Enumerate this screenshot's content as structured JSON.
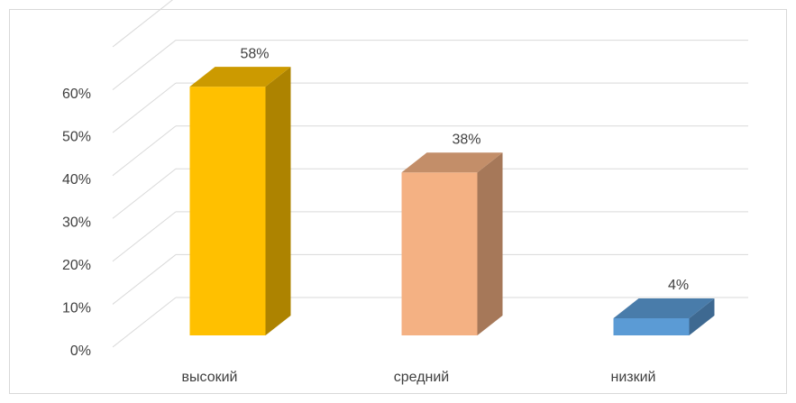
{
  "chart_data": {
    "type": "bar3d",
    "categories": [
      "высокий",
      "средний",
      "низкий"
    ],
    "values": [
      58,
      38,
      4
    ],
    "value_labels": [
      "58%",
      "38%",
      "4%"
    ],
    "colors": [
      "#FFC000",
      "#F4B183",
      "#5B9BD5"
    ],
    "ylim": [
      0,
      70
    ],
    "yticks": [
      {
        "value": 0,
        "label": "0%"
      },
      {
        "value": 10,
        "label": "10%"
      },
      {
        "value": 20,
        "label": "20%"
      },
      {
        "value": 30,
        "label": "30%"
      },
      {
        "value": 40,
        "label": "40%"
      },
      {
        "value": 50,
        "label": "50%"
      },
      {
        "value": 60,
        "label": "60%"
      }
    ],
    "grid": true
  }
}
